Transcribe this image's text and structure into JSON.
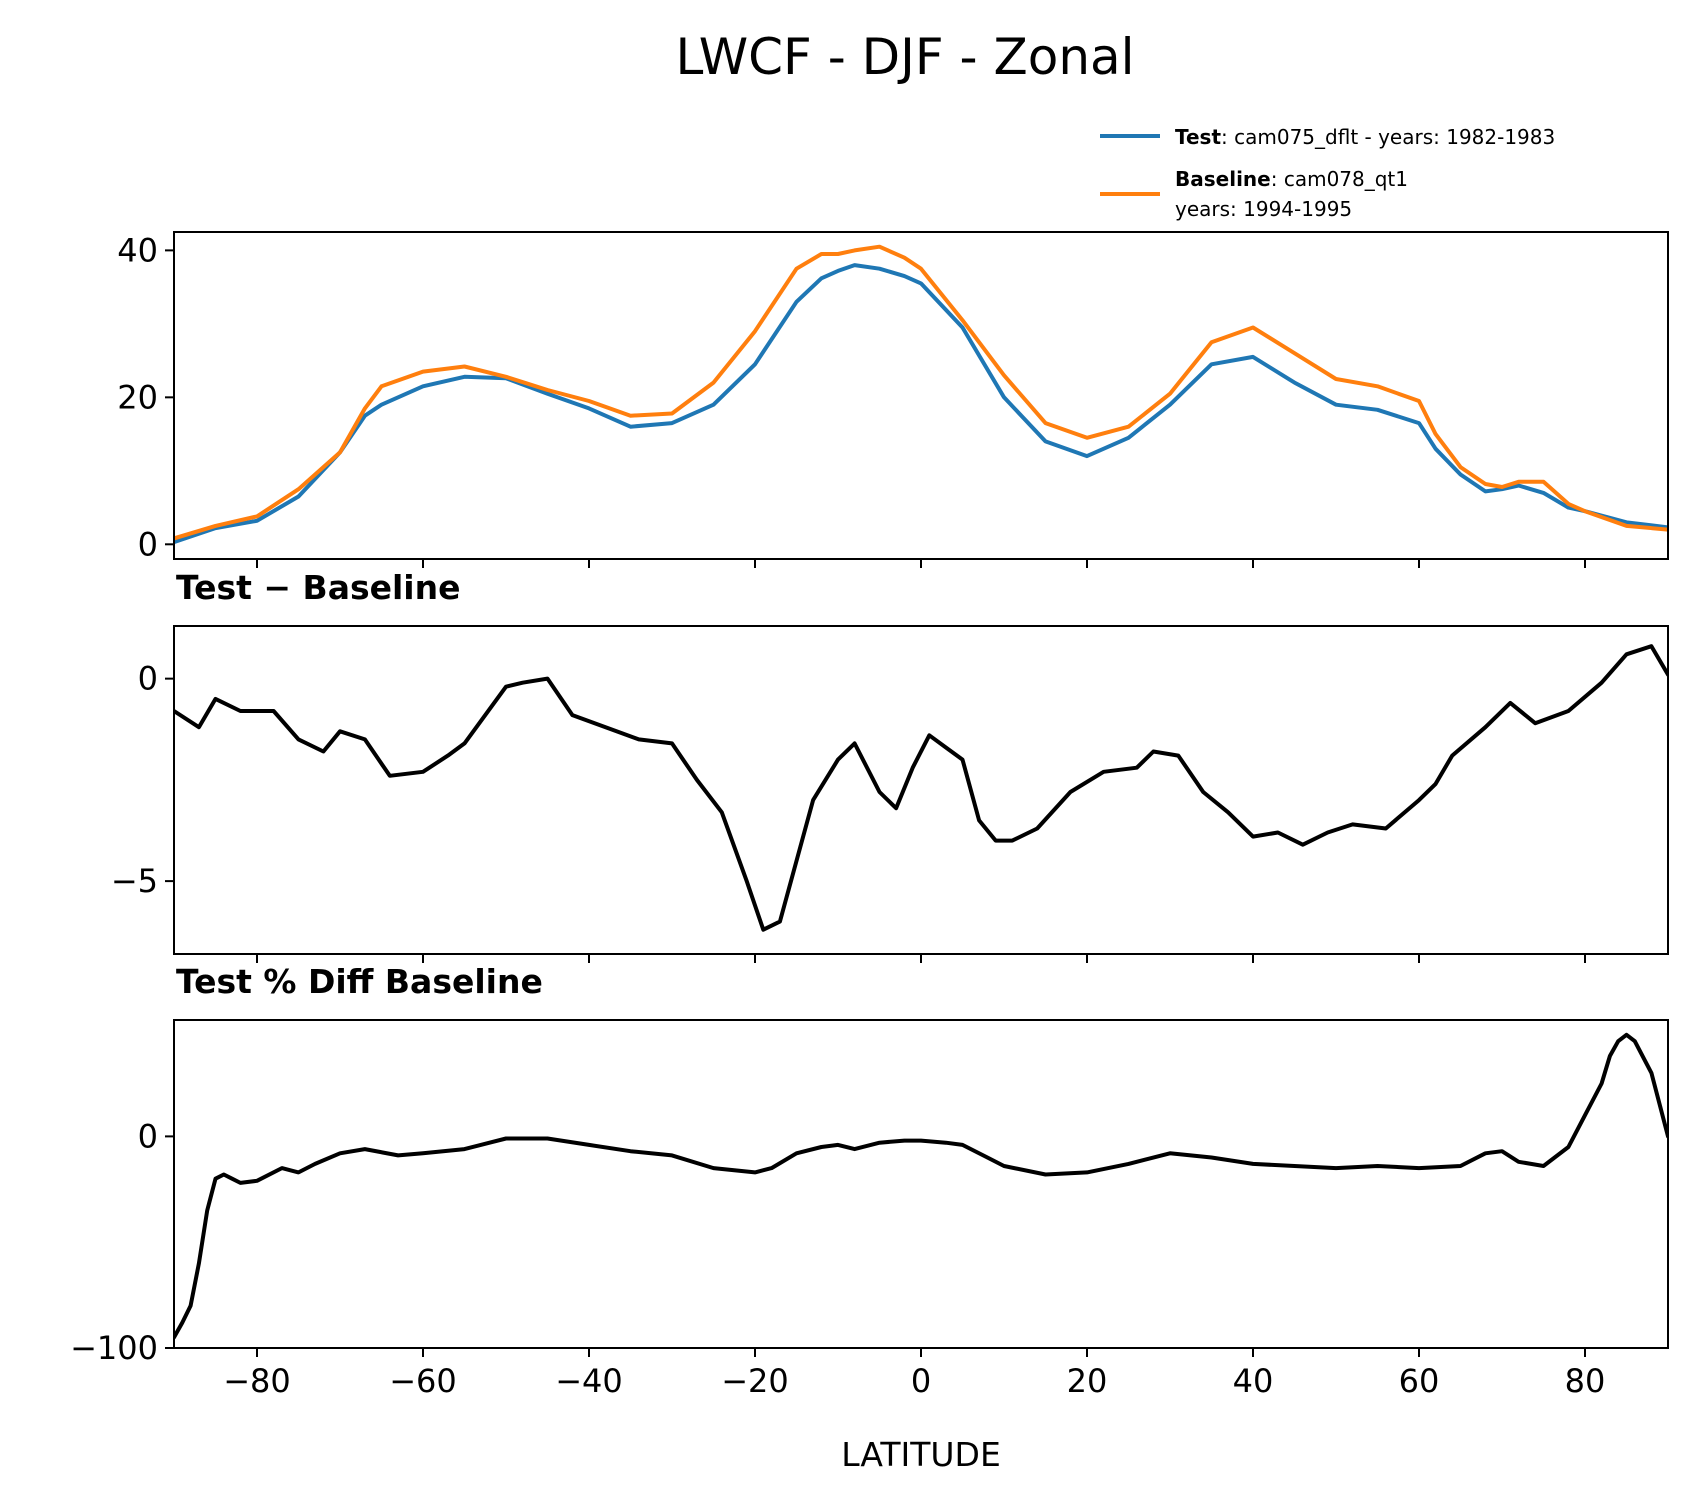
{
  "figure_title": "LWCF - DJF - Zonal",
  "legend": {
    "test": {
      "bold": "Test",
      "text": ": cam075_dflt - years: 1982-1983",
      "color": "#1f77b4"
    },
    "baseline": {
      "bold": "Baseline",
      "text": ": cam078_qt1",
      "text2": "years: 1994-1995",
      "color": "#ff7f0e"
    }
  },
  "chart_data": [
    {
      "type": "line",
      "panel": "zonal",
      "title": "",
      "xlim": [
        -90,
        90
      ],
      "ylim": [
        -2,
        42.5
      ],
      "xticks": [
        -80,
        -60,
        -40,
        -20,
        0,
        20,
        40,
        60,
        80
      ],
      "yticks": [
        0,
        20,
        40
      ],
      "ytick_labels": [
        "0",
        "20",
        "40"
      ],
      "x": [
        -90,
        -85,
        -80,
        -75,
        -70,
        -67,
        -65,
        -60,
        -55,
        -50,
        -45,
        -40,
        -35,
        -30,
        -25,
        -20,
        -15,
        -12,
        -10,
        -8,
        -5,
        -2,
        0,
        5,
        10,
        15,
        20,
        25,
        30,
        35,
        40,
        45,
        50,
        55,
        60,
        62,
        65,
        68,
        70,
        72,
        75,
        78,
        80,
        85,
        90
      ],
      "series": [
        {
          "name": "Test",
          "color": "#1f77b4",
          "values": [
            0.3,
            2.2,
            3.2,
            6.5,
            12.5,
            17.5,
            19.0,
            21.5,
            22.8,
            22.6,
            20.5,
            18.5,
            16.0,
            16.5,
            19.0,
            24.5,
            33.0,
            36.2,
            37.2,
            38.0,
            37.5,
            36.5,
            35.5,
            29.5,
            20.0,
            14.0,
            12.0,
            14.5,
            19.0,
            24.5,
            25.5,
            22.0,
            19.0,
            18.3,
            16.5,
            13.0,
            9.5,
            7.2,
            7.5,
            8.0,
            7.0,
            5.0,
            4.5,
            3.0,
            2.3
          ]
        },
        {
          "name": "Baseline",
          "color": "#ff7f0e",
          "values": [
            0.8,
            2.5,
            3.8,
            7.5,
            12.5,
            18.5,
            21.5,
            23.5,
            24.2,
            22.8,
            21.0,
            19.5,
            17.5,
            17.8,
            22.0,
            29.0,
            37.5,
            39.5,
            39.5,
            40.0,
            40.5,
            39.0,
            37.5,
            30.5,
            23.0,
            16.5,
            14.5,
            16.0,
            20.5,
            27.5,
            29.5,
            26.0,
            22.5,
            21.5,
            19.5,
            15.0,
            10.5,
            8.2,
            7.8,
            8.5,
            8.5,
            5.5,
            4.5,
            2.5,
            2.0
          ]
        }
      ]
    },
    {
      "type": "line",
      "panel": "difference",
      "title": "Test − Baseline",
      "xlim": [
        -90,
        90
      ],
      "ylim": [
        -6.8,
        1.3
      ],
      "xticks": [
        -80,
        -60,
        -40,
        -20,
        0,
        20,
        40,
        60,
        80
      ],
      "yticks": [
        0,
        -5
      ],
      "ytick_labels": [
        "0",
        "−5"
      ],
      "x": [
        -90,
        -87,
        -85,
        -82,
        -78,
        -75,
        -72,
        -70,
        -67,
        -64,
        -60,
        -57,
        -55,
        -50,
        -48,
        -45,
        -42,
        -38,
        -34,
        -30,
        -27,
        -24,
        -21,
        -19,
        -17,
        -15,
        -13,
        -10,
        -8,
        -5,
        -3,
        -1,
        1,
        3,
        5,
        7,
        9,
        11,
        14,
        18,
        22,
        26,
        28,
        31,
        34,
        37,
        40,
        43,
        46,
        49,
        52,
        56,
        60,
        62,
        64,
        68,
        71,
        74,
        78,
        82,
        85,
        88,
        90
      ],
      "series": [
        {
          "name": "Test - Baseline",
          "color": "#000000",
          "values": [
            -0.8,
            -1.2,
            -0.5,
            -0.8,
            -0.8,
            -1.5,
            -1.8,
            -1.3,
            -1.5,
            -2.4,
            -2.3,
            -1.9,
            -1.6,
            -0.2,
            -0.1,
            0.0,
            -0.9,
            -1.2,
            -1.5,
            -1.6,
            -2.5,
            -3.3,
            -5.0,
            -6.2,
            -6.0,
            -4.5,
            -3.0,
            -2.0,
            -1.6,
            -2.8,
            -3.2,
            -2.2,
            -1.4,
            -1.7,
            -2.0,
            -3.5,
            -4.0,
            -4.0,
            -3.7,
            -2.8,
            -2.3,
            -2.2,
            -1.8,
            -1.9,
            -2.8,
            -3.3,
            -3.9,
            -3.8,
            -4.1,
            -3.8,
            -3.6,
            -3.7,
            -3.0,
            -2.6,
            -1.9,
            -1.2,
            -0.6,
            -1.1,
            -0.8,
            -0.1,
            0.6,
            0.8,
            0.1
          ]
        }
      ]
    },
    {
      "type": "line",
      "panel": "percent_difference",
      "title": "Test % Diff Baseline",
      "xlim": [
        -90,
        90
      ],
      "ylim": [
        -100,
        55
      ],
      "xticks": [
        -80,
        -60,
        -40,
        -20,
        0,
        20,
        40,
        60,
        80
      ],
      "xtick_labels": [
        "−80",
        "−60",
        "−40",
        "−20",
        "0",
        "20",
        "40",
        "60",
        "80"
      ],
      "xlabel": "LATITUDE",
      "yticks": [
        0,
        -100
      ],
      "ytick_labels": [
        "0",
        "−100"
      ],
      "x": [
        -90,
        -89,
        -88,
        -87,
        -86,
        -85,
        -84,
        -83,
        -82,
        -80,
        -77,
        -75,
        -73,
        -70,
        -67,
        -63,
        -60,
        -55,
        -50,
        -45,
        -40,
        -35,
        -30,
        -25,
        -20,
        -18,
        -15,
        -12,
        -10,
        -8,
        -5,
        -2,
        0,
        3,
        5,
        8,
        10,
        15,
        20,
        25,
        30,
        35,
        40,
        45,
        50,
        55,
        60,
        65,
        68,
        70,
        72,
        75,
        78,
        80,
        82,
        83,
        84,
        85,
        86,
        88,
        90
      ],
      "series": [
        {
          "name": "Test % Diff Baseline",
          "color": "#000000",
          "values": [
            -95,
            -88,
            -80,
            -60,
            -35,
            -20,
            -18,
            -20,
            -22,
            -21,
            -15,
            -17,
            -13,
            -8,
            -6,
            -9,
            -8,
            -6,
            -1,
            -1,
            -4,
            -7,
            -9,
            -15,
            -17,
            -15,
            -8,
            -5,
            -4,
            -6,
            -3,
            -2,
            -2,
            -3,
            -4,
            -10,
            -14,
            -18,
            -17,
            -13,
            -8,
            -10,
            -13,
            -14,
            -15,
            -14,
            -15,
            -14,
            -8,
            -7,
            -12,
            -14,
            -5,
            10,
            25,
            38,
            45,
            48,
            45,
            30,
            0
          ]
        }
      ]
    }
  ]
}
